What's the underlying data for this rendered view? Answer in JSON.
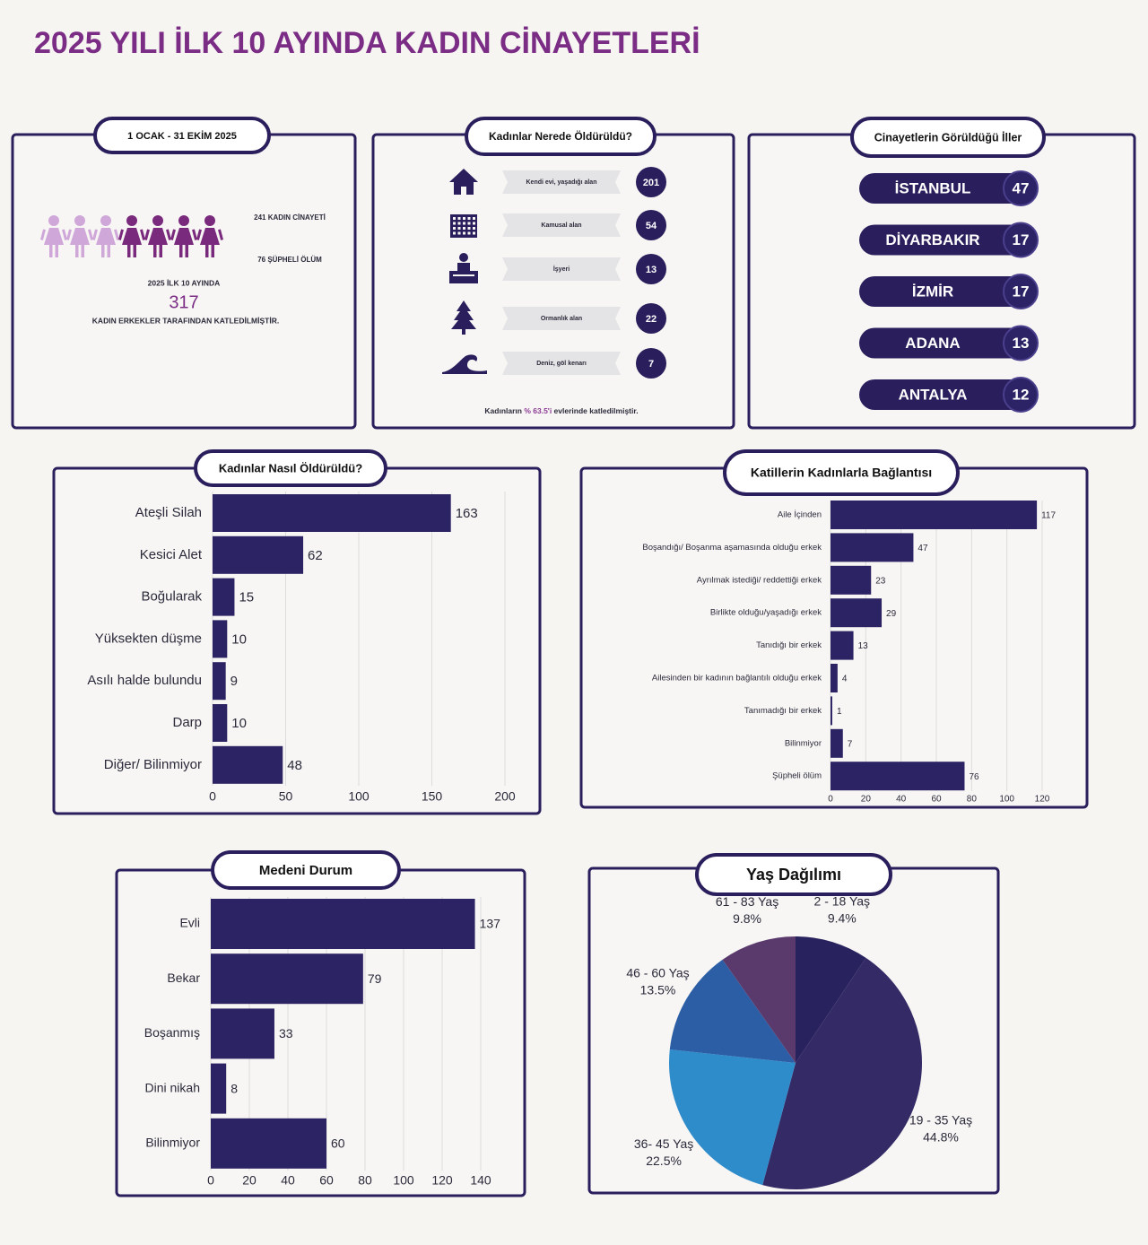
{
  "title": "2025 YILI İLK 10 AYINDA KADIN CİNAYETLERİ",
  "summary": {
    "period": "1 OCAK - 31 EKİM  2025",
    "murders": "241 KADIN CİNAYETİ",
    "suspicious": "76 ŞÜPHELİ ÖLÜM",
    "lead": "2025 İLK 10 AYINDA",
    "total": 317,
    "statement": "KADIN ERKEKLER TARAFINDAN KATLEDİLMİŞTİR."
  },
  "locations": {
    "title": "Kadınlar Nerede Öldürüldü?",
    "rows": [
      {
        "label": "Kendi evi, yaşadığı alan",
        "value": 201
      },
      {
        "label": "Kamusal alan",
        "value": 54
      },
      {
        "label": "İşyeri",
        "value": 13
      },
      {
        "label": "Ormanlık alan",
        "value": 22
      },
      {
        "label": "Deniz, göl kenarı",
        "value": 7
      }
    ],
    "footer": {
      "before": "Kadınların",
      "highlight": "% 63.5'i",
      "after": "evlerinde katledilmiştir."
    }
  },
  "provinces": {
    "title": "Cinayetlerin Görüldüğü İller",
    "rows": [
      {
        "name": "İSTANBUL",
        "value": 47
      },
      {
        "name": "DİYARBAKIR",
        "value": 17
      },
      {
        "name": "İZMİR",
        "value": 17
      },
      {
        "name": "ADANA",
        "value": 13
      },
      {
        "name": "ANTALYA",
        "value": 12
      }
    ]
  },
  "chart_data": [
    {
      "type": "bar",
      "orientation": "horizontal",
      "title": "Kadınlar Nasıl Öldürüldü?",
      "categories": [
        "Ateşli Silah",
        "Kesici Alet",
        "Boğularak",
        "Yüksekten düşme",
        "Asılı halde bulundu",
        "Darp",
        "Diğer/ Bilinmiyor"
      ],
      "values": [
        163,
        62,
        15,
        10,
        9,
        10,
        48
      ],
      "color": "#2b2363",
      "xlim": [
        0,
        200
      ],
      "xticks": [
        0,
        50,
        100,
        150,
        200
      ],
      "grid": true
    },
    {
      "type": "bar",
      "orientation": "horizontal",
      "title": "Katillerin Kadınlarla Bağlantısı",
      "categories": [
        "Aile İçinden",
        "Boşandığı/ Boşanma aşamasında olduğu erkek",
        "Ayrılmak istediği/ reddettiği erkek",
        "Birlikte olduğu/yaşadığı erkek",
        "Tanıdığı bir erkek",
        "Ailesinden bir kadının bağlantılı olduğu erkek",
        "Tanımadığı bir erkek",
        "Bilinmiyor",
        "Şüpheli ölüm"
      ],
      "values": [
        117,
        47,
        23,
        29,
        13,
        4,
        1,
        7,
        76
      ],
      "color": "#2b2363",
      "xlim": [
        0,
        120
      ],
      "xticks": [
        0,
        20,
        40,
        60,
        80,
        100,
        120
      ],
      "grid": true
    },
    {
      "type": "bar",
      "orientation": "horizontal",
      "title": "Medeni Durum",
      "categories": [
        "Evli",
        "Bekar",
        "Boşanmış",
        "Dini nikah",
        "Bilinmiyor"
      ],
      "values": [
        137,
        79,
        33,
        8,
        60
      ],
      "color": "#2b2363",
      "xlim": [
        0,
        140
      ],
      "xticks": [
        0,
        20,
        40,
        60,
        80,
        100,
        120,
        140
      ],
      "grid": true
    },
    {
      "type": "pie",
      "title": "Yaş Dağılımı",
      "categories": [
        "2 - 18 Yaş",
        "19 - 35 Yaş",
        "36- 45 Yaş",
        "46 - 60 Yaş",
        "61 - 83 Yaş"
      ],
      "values": [
        9.4,
        44.8,
        22.5,
        13.5,
        9.8
      ],
      "value_labels": [
        "9.4%",
        "44.8%",
        "22.5%",
        "13.5%",
        "9.8%"
      ],
      "colors": [
        "#28225e",
        "#342a66",
        "#2f8ccb",
        "#2c5ea6",
        "#5a3a6c"
      ]
    }
  ]
}
